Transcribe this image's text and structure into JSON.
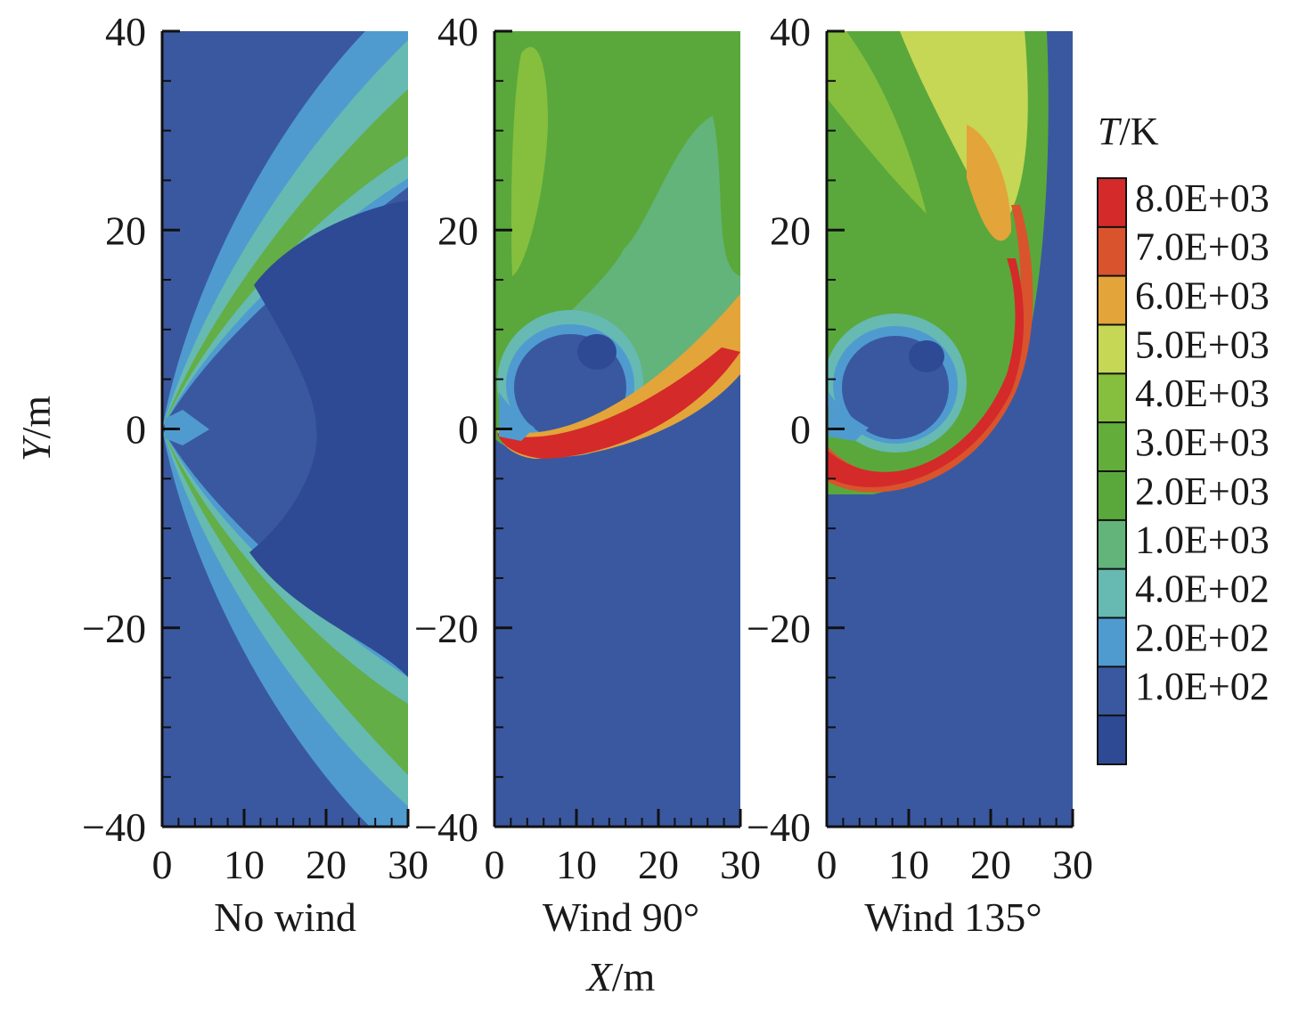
{
  "chart_data": {
    "type": "heatmap",
    "x_axis_label": {
      "var": "X",
      "unit": "/m"
    },
    "y_axis_label": {
      "var": "Y",
      "unit": "/m"
    },
    "xlim": [
      0,
      30
    ],
    "ylim": [
      -40,
      40
    ],
    "x_ticks": [
      "0",
      "10",
      "20",
      "30"
    ],
    "y_ticks": [
      "40",
      "20",
      "0",
      "−20",
      "−40"
    ],
    "x_tick_values": [
      0,
      10,
      20,
      30
    ],
    "y_tick_values": [
      40,
      20,
      0,
      -20,
      -40
    ],
    "panels": [
      {
        "title": "No wind"
      },
      {
        "title": "Wind 90°"
      },
      {
        "title": "Wind 135°"
      }
    ],
    "colorbar": {
      "title": {
        "var": "T",
        "unit": "/K"
      },
      "levels": [
        "8.0E+03",
        "7.0E+03",
        "6.0E+03",
        "5.0E+03",
        "4.0E+03",
        "3.0E+03",
        "2.0E+03",
        "1.0E+03",
        "4.0E+02",
        "2.0E+02",
        "1.0E+02"
      ],
      "level_values": [
        8000,
        7000,
        6000,
        5000,
        4000,
        3000,
        2000,
        1000,
        400,
        200,
        100
      ],
      "colors": [
        "#d42a2a",
        "#d9542c",
        "#e3a43a",
        "#c5d754",
        "#86bf3e",
        "#63ad3a",
        "#5aa83b",
        "#63b47a",
        "#66bab2",
        "#4f9bd0",
        "#3a58a0",
        "#2e4a94"
      ]
    }
  }
}
